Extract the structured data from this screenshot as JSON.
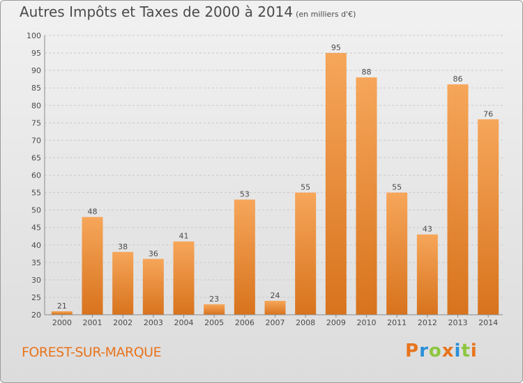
{
  "title": "Autres Impôts et Taxes de 2000 à 2014",
  "unit_label": "(en milliers d'€)",
  "city": "FOREST-SUR-MARQUE",
  "logo_text": "Proxiti",
  "colors": {
    "bar_top": "#f6a65a",
    "bar_bottom": "#d8731d",
    "city": "#e8741c",
    "grid": "#c9c9c9"
  },
  "chart_data": {
    "type": "bar",
    "categories": [
      "2000",
      "2001",
      "2002",
      "2003",
      "2004",
      "2005",
      "2006",
      "2007",
      "2008",
      "2009",
      "2010",
      "2011",
      "2012",
      "2013",
      "2014"
    ],
    "values": [
      21,
      48,
      38,
      36,
      41,
      23,
      53,
      24,
      55,
      95,
      88,
      55,
      43,
      86,
      76
    ],
    "title": "Autres Impôts et Taxes de 2000 à 2014",
    "ylabel": "(en milliers d'€)",
    "xlabel": "",
    "ylim": [
      20,
      100
    ],
    "yticks": [
      20,
      25,
      30,
      35,
      40,
      45,
      50,
      55,
      60,
      65,
      70,
      75,
      80,
      85,
      90,
      95,
      100
    ],
    "grid": true
  }
}
